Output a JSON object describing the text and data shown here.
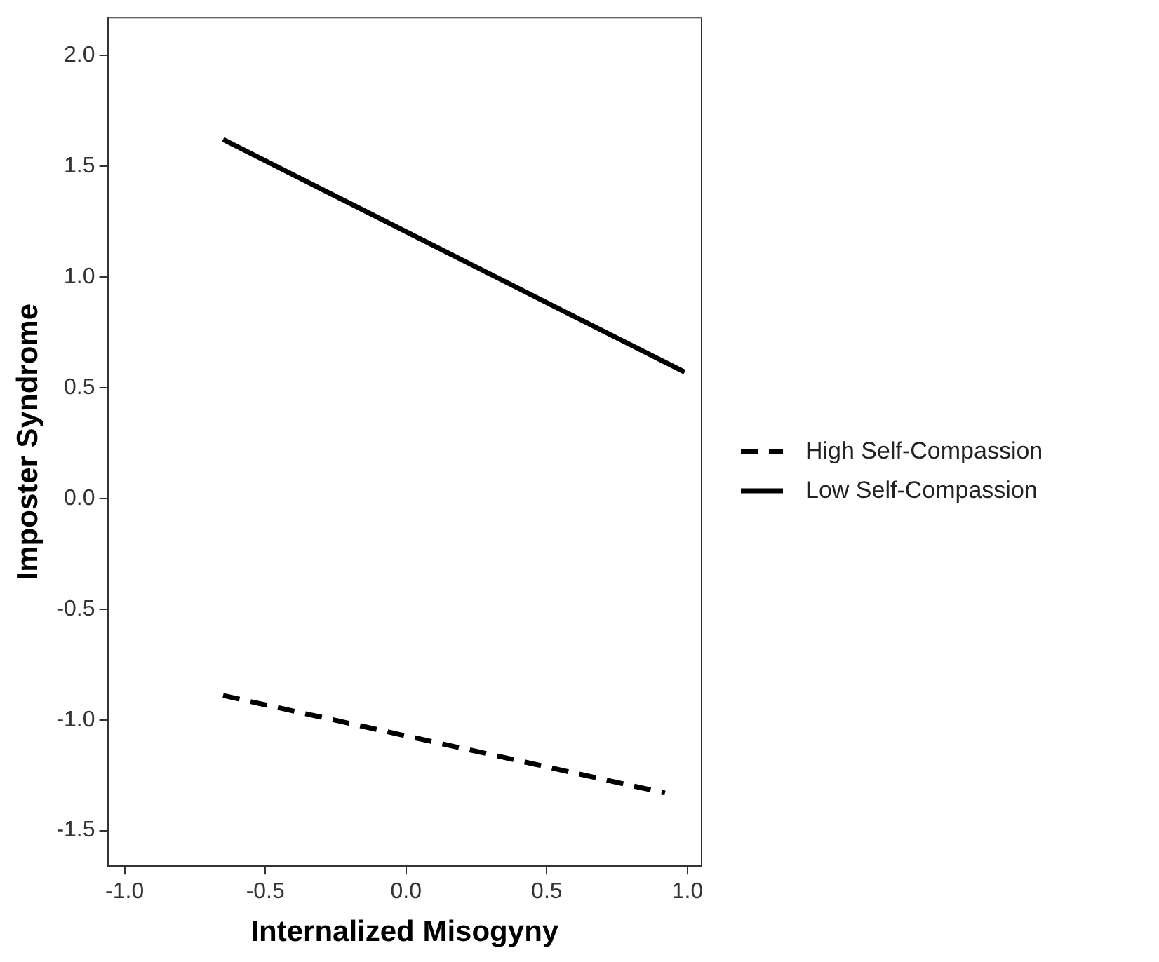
{
  "chart_data": {
    "type": "line",
    "xlabel": "Internalized Misogyny",
    "ylabel": "Imposter Syndrome",
    "xlim": [
      -1.06,
      1.05
    ],
    "ylim": [
      -1.66,
      2.17
    ],
    "xticks": [
      {
        "value": -1,
        "label": "-1.0"
      },
      {
        "value": -0.5,
        "label": "-0.5"
      },
      {
        "value": 0,
        "label": "0.0"
      },
      {
        "value": 0.5,
        "label": "0.5"
      },
      {
        "value": 1,
        "label": "1.0"
      }
    ],
    "yticks": [
      {
        "value": -1.5,
        "label": "-1.5"
      },
      {
        "value": -1,
        "label": "-1.0"
      },
      {
        "value": -0.5,
        "label": "-0.5"
      },
      {
        "value": 0,
        "label": "0.0"
      },
      {
        "value": 0.5,
        "label": "0.5"
      },
      {
        "value": 1,
        "label": "1.0"
      },
      {
        "value": 1.5,
        "label": "1.5"
      },
      {
        "value": 2,
        "label": "2.0"
      }
    ],
    "grid": false,
    "legend": "right",
    "marker": "none",
    "series": [
      {
        "name": "High Self-Compassion",
        "color": "#000000",
        "line_style": "dashed",
        "x": [
          -0.65,
          0.92
        ],
        "values": [
          -0.89,
          -1.33
        ]
      },
      {
        "name": "Low Self-Compassion",
        "color": "#000000",
        "line_style": "solid",
        "x": [
          -0.65,
          0.99
        ],
        "values": [
          1.62,
          0.57
        ]
      }
    ]
  }
}
